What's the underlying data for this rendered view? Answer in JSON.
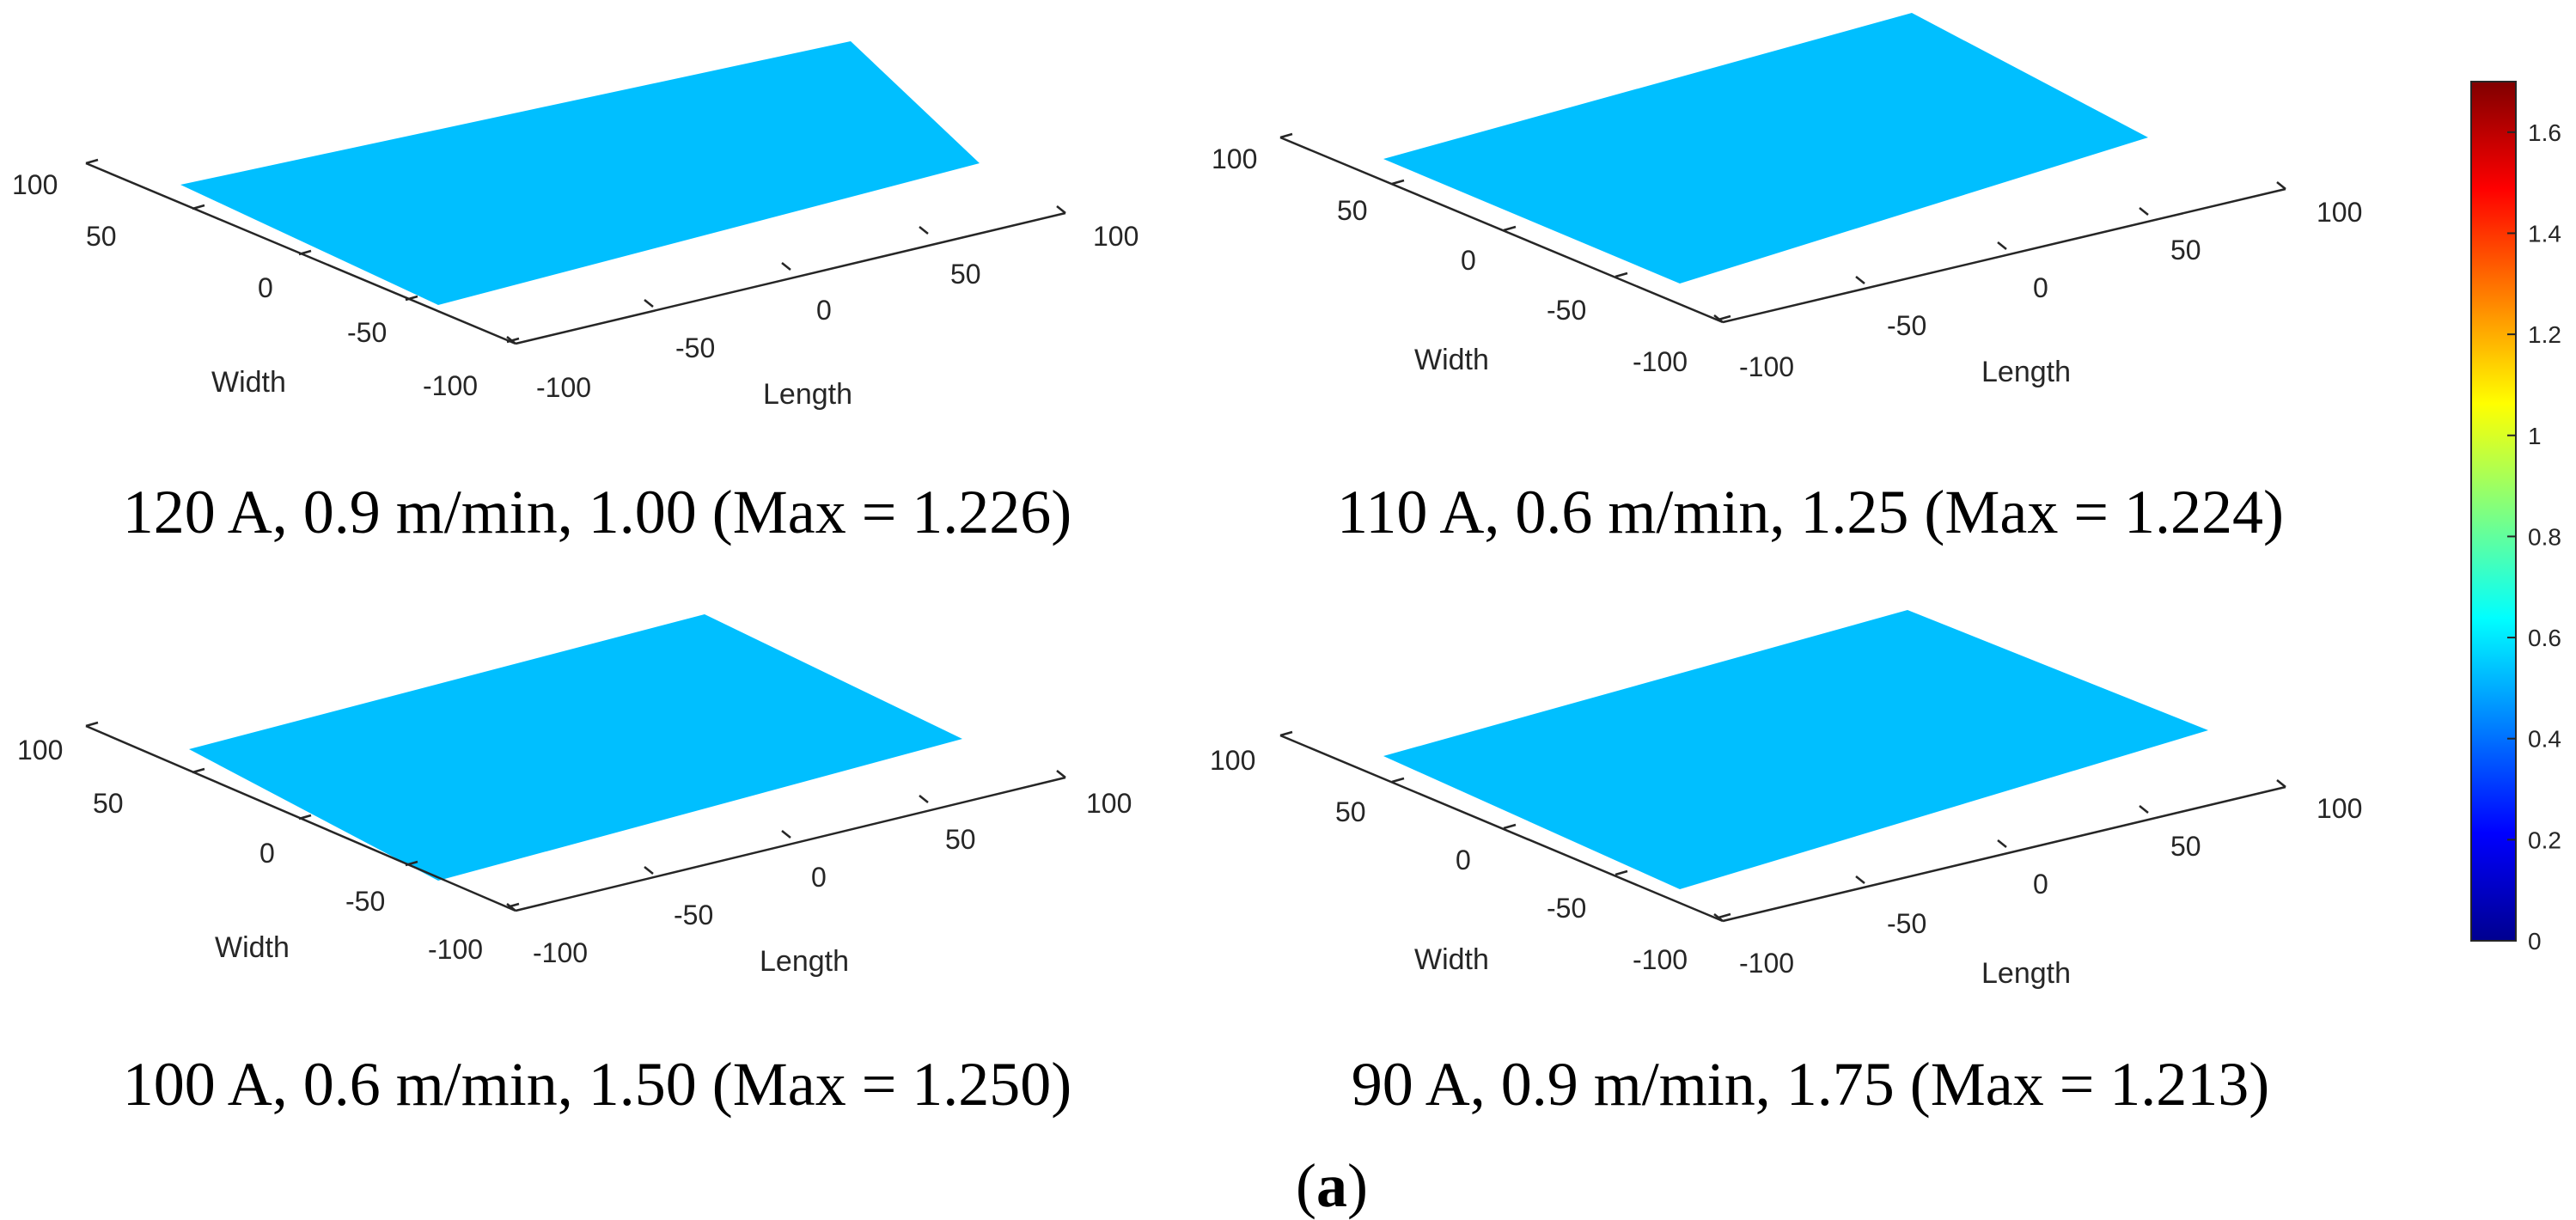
{
  "figure": {
    "sublabel_open": "(",
    "sublabel_letter": "a",
    "sublabel_close": ")"
  },
  "chart_data": [
    {
      "type": "surface",
      "title": "120 A, 0.9 m/min, 1.00 (Max = 1.226)",
      "xlabel": "Length",
      "ylabel": "Width",
      "x_ticks": [
        "-100",
        "-50",
        "0",
        "50",
        "100"
      ],
      "y_ticks": [
        "-100",
        "-50",
        "0",
        "50",
        "100"
      ],
      "xlim": [
        -100,
        100
      ],
      "ylim": [
        -100,
        100
      ],
      "max": 1.226,
      "color_range": [
        0,
        1.7
      ],
      "colormap": "jet"
    },
    {
      "type": "surface",
      "title": "110 A, 0.6 m/min, 1.25 (Max = 1.224)",
      "xlabel": "Length",
      "ylabel": "Width",
      "x_ticks": [
        "-100",
        "-50",
        "0",
        "50",
        "100"
      ],
      "y_ticks": [
        "-100",
        "-50",
        "0",
        "50",
        "100"
      ],
      "xlim": [
        -100,
        100
      ],
      "ylim": [
        -100,
        100
      ],
      "max": 1.224,
      "color_range": [
        0,
        1.7
      ],
      "colormap": "jet"
    },
    {
      "type": "surface",
      "title": "100 A, 0.6 m/min, 1.50 (Max = 1.250)",
      "xlabel": "Length",
      "ylabel": "Width",
      "x_ticks": [
        "-100",
        "-50",
        "0",
        "50",
        "100"
      ],
      "y_ticks": [
        "-100",
        "-50",
        "0",
        "50",
        "100"
      ],
      "xlim": [
        -100,
        100
      ],
      "ylim": [
        -100,
        100
      ],
      "max": 1.25,
      "color_range": [
        0,
        1.7
      ],
      "colormap": "jet"
    },
    {
      "type": "surface",
      "title": "90 A, 0.9 m/min, 1.75 (Max = 1.213)",
      "xlabel": "Length",
      "ylabel": "Width",
      "x_ticks": [
        "-100",
        "-50",
        "0",
        "50",
        "100"
      ],
      "y_ticks": [
        "-100",
        "-50",
        "0",
        "50",
        "100"
      ],
      "xlim": [
        -100,
        100
      ],
      "ylim": [
        -100,
        100
      ],
      "max": 1.213,
      "color_range": [
        0,
        1.7
      ],
      "colormap": "jet"
    }
  ],
  "colorbar": {
    "min": 0,
    "max": 1.7,
    "ticks": [
      "0",
      "0.2",
      "0.4",
      "0.6",
      "0.8",
      "1",
      "1.2",
      "1.4",
      "1.6"
    ],
    "tick_values": [
      0,
      0.2,
      0.4,
      0.6,
      0.8,
      1.0,
      1.2,
      1.4,
      1.6
    ]
  }
}
